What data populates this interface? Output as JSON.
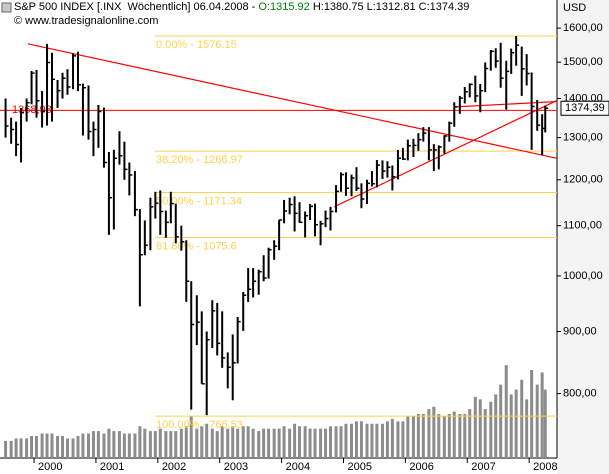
{
  "chart_data": {
    "type": "ohlc",
    "title": "S&P 500 INDEX [.INX  Wöchentlich] 06.04.2008 -",
    "open_label": "O:1315.92",
    "hlc_label": "H:1380.75 L:1312.81 C:1374.39",
    "copyright": "© www.tradesignalonline.com",
    "y_unit": "USD",
    "ylog": true,
    "ylim": [
      708,
      1631
    ],
    "yticks": [
      {
        "value": 800,
        "label": "800,00"
      },
      {
        "value": 900,
        "label": "900,00"
      },
      {
        "value": 1000,
        "label": "1000,00"
      },
      {
        "value": 1100,
        "label": "1100,00"
      },
      {
        "value": 1200,
        "label": "1200,00"
      },
      {
        "value": 1300,
        "label": "1300,00"
      },
      {
        "value": 1400,
        "label": "1400,00"
      },
      {
        "value": 1500,
        "label": "1500,00"
      },
      {
        "value": 1600,
        "label": "1600,00"
      }
    ],
    "xlim": [
      1999.45,
      2008.45
    ],
    "xticks": [
      2000,
      2001,
      2002,
      2003,
      2004,
      2005,
      2006,
      2007,
      2008
    ],
    "color": "#000000",
    "x": [
      1999.54,
      1999.63,
      1999.71,
      1999.79,
      1999.88,
      1999.96,
      2000.04,
      2000.13,
      2000.21,
      2000.29,
      2000.38,
      2000.46,
      2000.54,
      2000.63,
      2000.71,
      2000.79,
      2000.88,
      2000.96,
      2001.04,
      2001.13,
      2001.21,
      2001.29,
      2001.38,
      2001.46,
      2001.54,
      2001.63,
      2001.71,
      2001.79,
      2001.88,
      2001.96,
      2002.04,
      2002.13,
      2002.21,
      2002.29,
      2002.38,
      2002.46,
      2002.54,
      2002.63,
      2002.71,
      2002.79,
      2002.88,
      2002.96,
      2003.04,
      2003.13,
      2003.21,
      2003.29,
      2003.38,
      2003.46,
      2003.54,
      2003.63,
      2003.71,
      2003.79,
      2003.88,
      2003.96,
      2004.04,
      2004.13,
      2004.21,
      2004.29,
      2004.38,
      2004.46,
      2004.54,
      2004.63,
      2004.71,
      2004.79,
      2004.88,
      2004.96,
      2005.04,
      2005.13,
      2005.21,
      2005.29,
      2005.38,
      2005.46,
      2005.54,
      2005.63,
      2005.71,
      2005.79,
      2005.88,
      2005.96,
      2006.04,
      2006.13,
      2006.21,
      2006.29,
      2006.38,
      2006.46,
      2006.54,
      2006.63,
      2006.71,
      2006.79,
      2006.88,
      2006.96,
      2007.04,
      2007.13,
      2007.21,
      2007.29,
      2007.38,
      2007.46,
      2007.54,
      2007.63,
      2007.71,
      2007.79,
      2007.88,
      2007.96,
      2008.04,
      2008.13,
      2008.21,
      2008.26
    ],
    "high": [
      1400,
      1350,
      1340,
      1375,
      1400,
      1475,
      1478,
      1420,
      1553,
      1527,
      1450,
      1470,
      1480,
      1525,
      1530,
      1440,
      1435,
      1340,
      1383,
      1376,
      1265,
      1270,
      1316,
      1290,
      1240,
      1220,
      1135,
      1111,
      1160,
      1173,
      1176,
      1132,
      1173,
      1147,
      1100,
      1070,
      990,
      964,
      935,
      900,
      955,
      950,
      935,
      865,
      895,
      925,
      970,
      1015,
      1015,
      1012,
      1040,
      1055,
      1070,
      1112,
      1155,
      1160,
      1163,
      1150,
      1130,
      1146,
      1147,
      1110,
      1132,
      1140,
      1188,
      1217,
      1217,
      1212,
      1229,
      1192,
      1200,
      1220,
      1246,
      1245,
      1243,
      1233,
      1270,
      1275,
      1295,
      1297,
      1311,
      1326,
      1326,
      1284,
      1281,
      1306,
      1340,
      1390,
      1407,
      1431,
      1441,
      1462,
      1439,
      1499,
      1535,
      1540,
      1556,
      1504,
      1539,
      1576,
      1545,
      1523,
      1471,
      1396,
      1359,
      1380.75
    ],
    "low": [
      1300,
      1285,
      1255,
      1240,
      1340,
      1385,
      1350,
      1325,
      1330,
      1340,
      1375,
      1400,
      1410,
      1425,
      1420,
      1305,
      1295,
      1255,
      1275,
      1228,
      1081,
      1092,
      1235,
      1200,
      1165,
      1120,
      944,
      1040,
      1050,
      1115,
      1081,
      1075,
      1105,
      1064,
      1049,
      952,
      776,
      877,
      815,
      768,
      872,
      860,
      840,
      808,
      790,
      847,
      901,
      952,
      960,
      965,
      990,
      995,
      1031,
      1050,
      1105,
      1124,
      1088,
      1106,
      1076,
      1112,
      1078,
      1060,
      1097,
      1090,
      1128,
      1173,
      1164,
      1163,
      1175,
      1137,
      1146,
      1185,
      1183,
      1202,
      1205,
      1176,
      1201,
      1246,
      1245,
      1253,
      1268,
      1290,
      1245,
      1220,
      1224,
      1261,
      1290,
      1327,
      1360,
      1387,
      1403,
      1390,
      1364,
      1417,
      1476,
      1484,
      1429,
      1371,
      1467,
      1490,
      1407,
      1435,
      1270,
      1317,
      1257,
      1312.81
    ],
    "close": [
      1329,
      1320,
      1283,
      1363,
      1389,
      1469,
      1394,
      1366,
      1499,
      1452,
      1421,
      1455,
      1431,
      1518,
      1437,
      1429,
      1315,
      1320,
      1366,
      1240,
      1160,
      1250,
      1256,
      1224,
      1211,
      1134,
      1041,
      1060,
      1140,
      1148,
      1130,
      1107,
      1147,
      1077,
      1067,
      990,
      912,
      916,
      815,
      886,
      936,
      880,
      856,
      841,
      848,
      917,
      964,
      975,
      990,
      1008,
      996,
      1051,
      1058,
      1112,
      1131,
      1145,
      1126,
      1107,
      1121,
      1141,
      1102,
      1104,
      1115,
      1130,
      1174,
      1212,
      1181,
      1204,
      1181,
      1157,
      1192,
      1191,
      1234,
      1220,
      1229,
      1207,
      1250,
      1248,
      1280,
      1281,
      1295,
      1311,
      1270,
      1270,
      1277,
      1304,
      1336,
      1378,
      1401,
      1418,
      1438,
      1407,
      1421,
      1482,
      1531,
      1503,
      1455,
      1474,
      1527,
      1549,
      1481,
      1468,
      1379,
      1331,
      1323,
      1374.39
    ],
    "volume": [
      7,
      7,
      8,
      8,
      8,
      9,
      9,
      10,
      10,
      10,
      9,
      9,
      8,
      8,
      9,
      10,
      10,
      11,
      11,
      10,
      12,
      11,
      11,
      10,
      10,
      10,
      13,
      12,
      11,
      11,
      12,
      11,
      11,
      11,
      12,
      13,
      17,
      12,
      13,
      14,
      12,
      11,
      13,
      12,
      13,
      12,
      13,
      13,
      12,
      11,
      12,
      12,
      12,
      12,
      13,
      12,
      14,
      13,
      13,
      12,
      12,
      12,
      12,
      13,
      13,
      13,
      14,
      14,
      15,
      15,
      14,
      14,
      14,
      14,
      15,
      16,
      15,
      15,
      17,
      17,
      18,
      18,
      20,
      21,
      18,
      17,
      18,
      19,
      18,
      18,
      20,
      25,
      24,
      20,
      23,
      26,
      30,
      38,
      26,
      28,
      32,
      24,
      36,
      30,
      35,
      28
    ],
    "vlim": [
      0,
      45
    ],
    "volume_color": "#8c8c8c",
    "fib_color": "#ffd24a",
    "fib_levels": [
      {
        "value": 1576.15,
        "label": "0.00% - 1576.15"
      },
      {
        "value": 1266.97,
        "label": "38.20% - 1266.97"
      },
      {
        "value": 1171.34,
        "label": "50.00% - 1171.34"
      },
      {
        "value": 1075.6,
        "label": "61.80% - 1075.6"
      },
      {
        "value": 766.53,
        "label": "100.00% - 766.53"
      }
    ],
    "level_color": "#ff0000",
    "level": {
      "value": 1368.98,
      "label": "1368,98"
    },
    "last": {
      "value": 1374.39,
      "label": "1374,39"
    },
    "trendlines": [
      {
        "x": [
          1999.9,
          2008.45
        ],
        "y": [
          1553,
          1250
        ]
      },
      {
        "x": [
          2004.85,
          2008.45
        ],
        "y": [
          1140,
          1395
        ]
      },
      {
        "x": [
          2006.8,
          2008.45
        ],
        "y": [
          1378,
          1392
        ]
      }
    ]
  }
}
